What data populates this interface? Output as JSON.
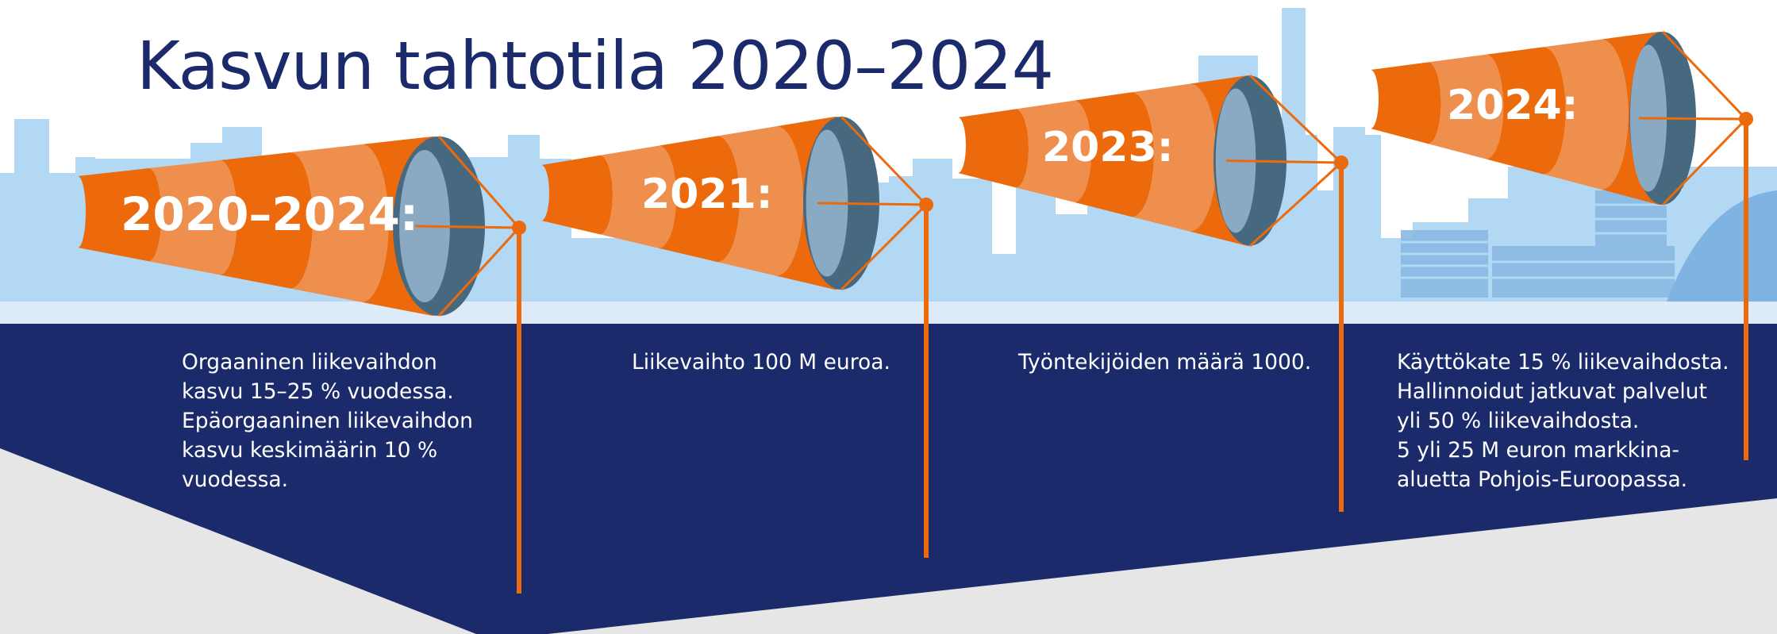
{
  "title": "Kasvun tahtotila 2020–2024",
  "colors": {
    "navy": "#1b2a6b",
    "orange": "#ec6a0c",
    "orange_light": "#ef8f4d",
    "sky": "#b3d8f4",
    "ground": "#e6e6e6",
    "sock_mouth": "#46697f"
  },
  "milestones": [
    {
      "label": "2020–2024:",
      "lines": [
        "Orgaaninen liikevaihdon",
        "kasvu 15–25 % vuodessa.",
        "Epäorgaaninen liikevaihdon",
        "kasvu keskimäärin 10 %",
        "vuodessa."
      ]
    },
    {
      "label": "2021:",
      "lines": [
        "Liikevaihto 100 M euroa."
      ]
    },
    {
      "label": "2023:",
      "lines": [
        "Työntekijöiden määrä 1000."
      ]
    },
    {
      "label": "2024:",
      "lines": [
        "Käyttökate 15 % liikevaihdosta.",
        "Hallinnoidut jatkuvat palvelut",
        "yli 50 % liikevaihdosta.",
        "5 yli 25 M euron markkina-",
        "aluetta Pohjois-Euroopassa."
      ]
    }
  ]
}
